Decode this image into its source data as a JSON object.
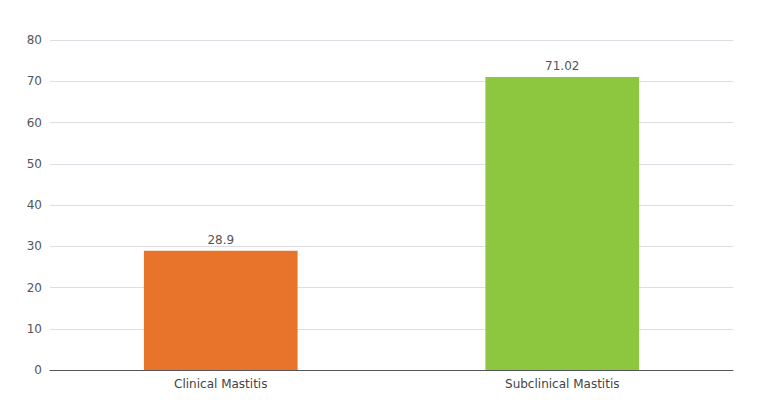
{
  "chart_data": {
    "type": "bar",
    "categories": [
      "Clinical Mastitis",
      "Subclinical Mastitis"
    ],
    "values": [
      28.9,
      71.02
    ],
    "colors": [
      "#E8732A",
      "#8DC63F"
    ],
    "ylim": [
      0,
      80
    ],
    "yticks": [
      0,
      10,
      20,
      30,
      40,
      50,
      60,
      70,
      80
    ],
    "grid": true,
    "data_labels": true
  }
}
